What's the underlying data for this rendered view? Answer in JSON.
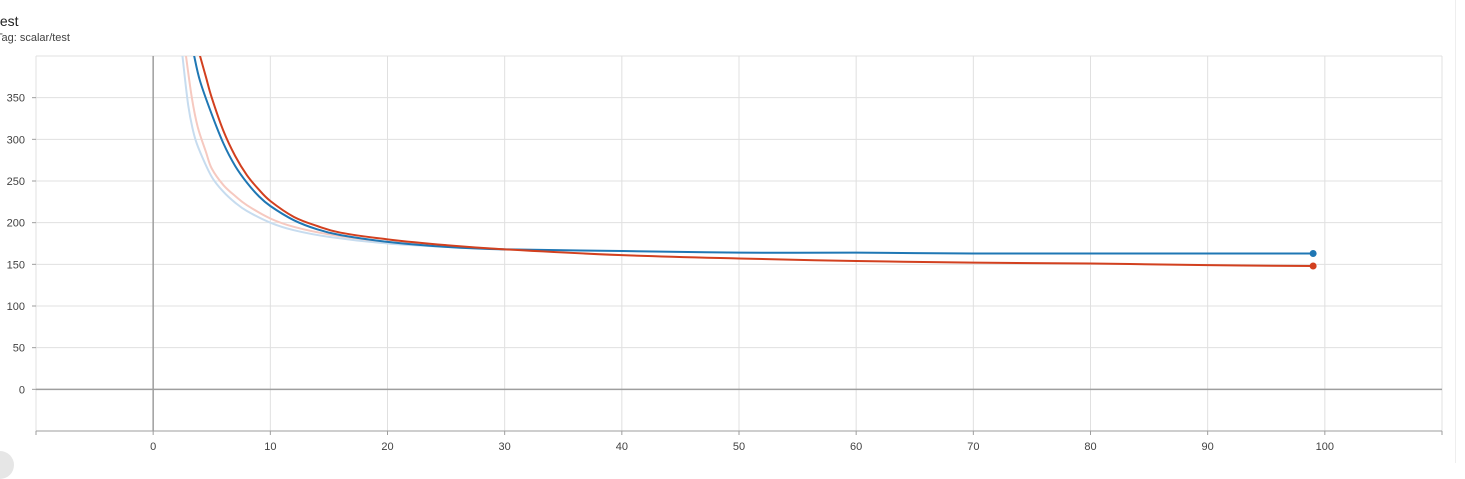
{
  "card": {
    "title": "test",
    "tag": "Tag: scalar/test"
  },
  "colors": {
    "grid": "#e0e0e0",
    "axis": "#9e9e9e",
    "series_blue": "#1f77b4",
    "series_blue_raw": "#c7dcef",
    "series_red": "#d2401f",
    "series_red_raw": "#f6c9c0"
  },
  "chart_data": {
    "type": "line",
    "title": "test",
    "xlabel": "",
    "ylabel": "",
    "xlim": [
      -10,
      110
    ],
    "ylim": [
      -50,
      400
    ],
    "xticks": [
      0,
      10,
      20,
      30,
      40,
      50,
      60,
      70,
      80,
      90,
      100
    ],
    "yticks": [
      0,
      50,
      100,
      150,
      200,
      250,
      300,
      350
    ],
    "grid": true,
    "legend": "none",
    "series": [
      {
        "key": "blue",
        "smoothed": true,
        "x": [
          3.5,
          4,
          5,
          6,
          7,
          8,
          9,
          10,
          12,
          14,
          16,
          20,
          25,
          30,
          40,
          50,
          60,
          70,
          80,
          90,
          99
        ],
        "y": [
          400,
          370,
          330,
          295,
          268,
          248,
          232,
          220,
          203,
          192,
          185,
          177,
          171,
          168,
          166,
          164,
          164,
          163,
          163,
          163,
          163
        ]
      },
      {
        "key": "red",
        "smoothed": true,
        "x": [
          4,
          4.5,
          5,
          6,
          7,
          8,
          9,
          10,
          12,
          14,
          16,
          20,
          25,
          30,
          40,
          50,
          60,
          70,
          80,
          90,
          99
        ],
        "y": [
          400,
          375,
          350,
          310,
          280,
          257,
          240,
          226,
          207,
          196,
          188,
          180,
          173,
          168,
          161,
          157,
          154,
          152,
          151,
          149,
          148
        ]
      },
      {
        "key": "blue_raw",
        "smoothed": false,
        "x": [
          2.5,
          3,
          3.5,
          4,
          5,
          6,
          7,
          8,
          10,
          12,
          15,
          20,
          25,
          30
        ],
        "y": [
          400,
          340,
          305,
          285,
          255,
          237,
          224,
          214,
          200,
          191,
          183,
          175,
          171,
          168
        ]
      },
      {
        "key": "red_raw",
        "smoothed": false,
        "x": [
          2.8,
          3.3,
          3.8,
          4.5,
          5,
          6,
          7,
          8,
          10,
          12,
          15,
          20,
          25,
          30
        ],
        "y": [
          400,
          350,
          315,
          285,
          265,
          245,
          232,
          221,
          205,
          195,
          186,
          177,
          172,
          168
        ]
      }
    ]
  }
}
